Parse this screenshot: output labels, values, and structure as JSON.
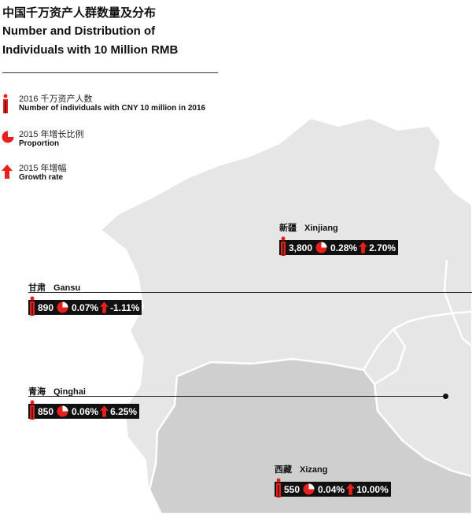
{
  "title": {
    "zh": "中国千万资产人群数量及分布",
    "en_line1": "Number and Distribution of",
    "en_line2": "Individuals with 10 Million RMB"
  },
  "legend": [
    {
      "icon": "person-icon",
      "zh": "2016 千万资产人数",
      "en": "Number of individuals with CNY 10 million in 2016"
    },
    {
      "icon": "pie-icon",
      "zh": "2015 年增长比例",
      "en": "Proportion"
    },
    {
      "icon": "up-arrow-icon",
      "zh": "2015 年增幅",
      "en": "Growth rate"
    }
  ],
  "regions": {
    "xinjiang": {
      "zh": "新疆",
      "en": "Xinjiang",
      "count": "3,800",
      "proportion": "0.28%",
      "growth": "2.70%"
    },
    "gansu": {
      "zh": "甘肃",
      "en": "Gansu",
      "count": "890",
      "proportion": "0.07%",
      "growth": "-1.11%"
    },
    "qinghai": {
      "zh": "青海",
      "en": "Qinghai",
      "count": "850",
      "proportion": "0.06%",
      "growth": "6.25%"
    },
    "xizang": {
      "zh": "西藏",
      "en": "Xizang",
      "count": "550",
      "proportion": "0.04%",
      "growth": "10.00%"
    }
  },
  "colors": {
    "accent": "#e8201c",
    "map_fill": "#e6e6e6",
    "map_highlight": "#cfcfcf",
    "border": "#ffffff",
    "bar_bg": "#111111"
  }
}
